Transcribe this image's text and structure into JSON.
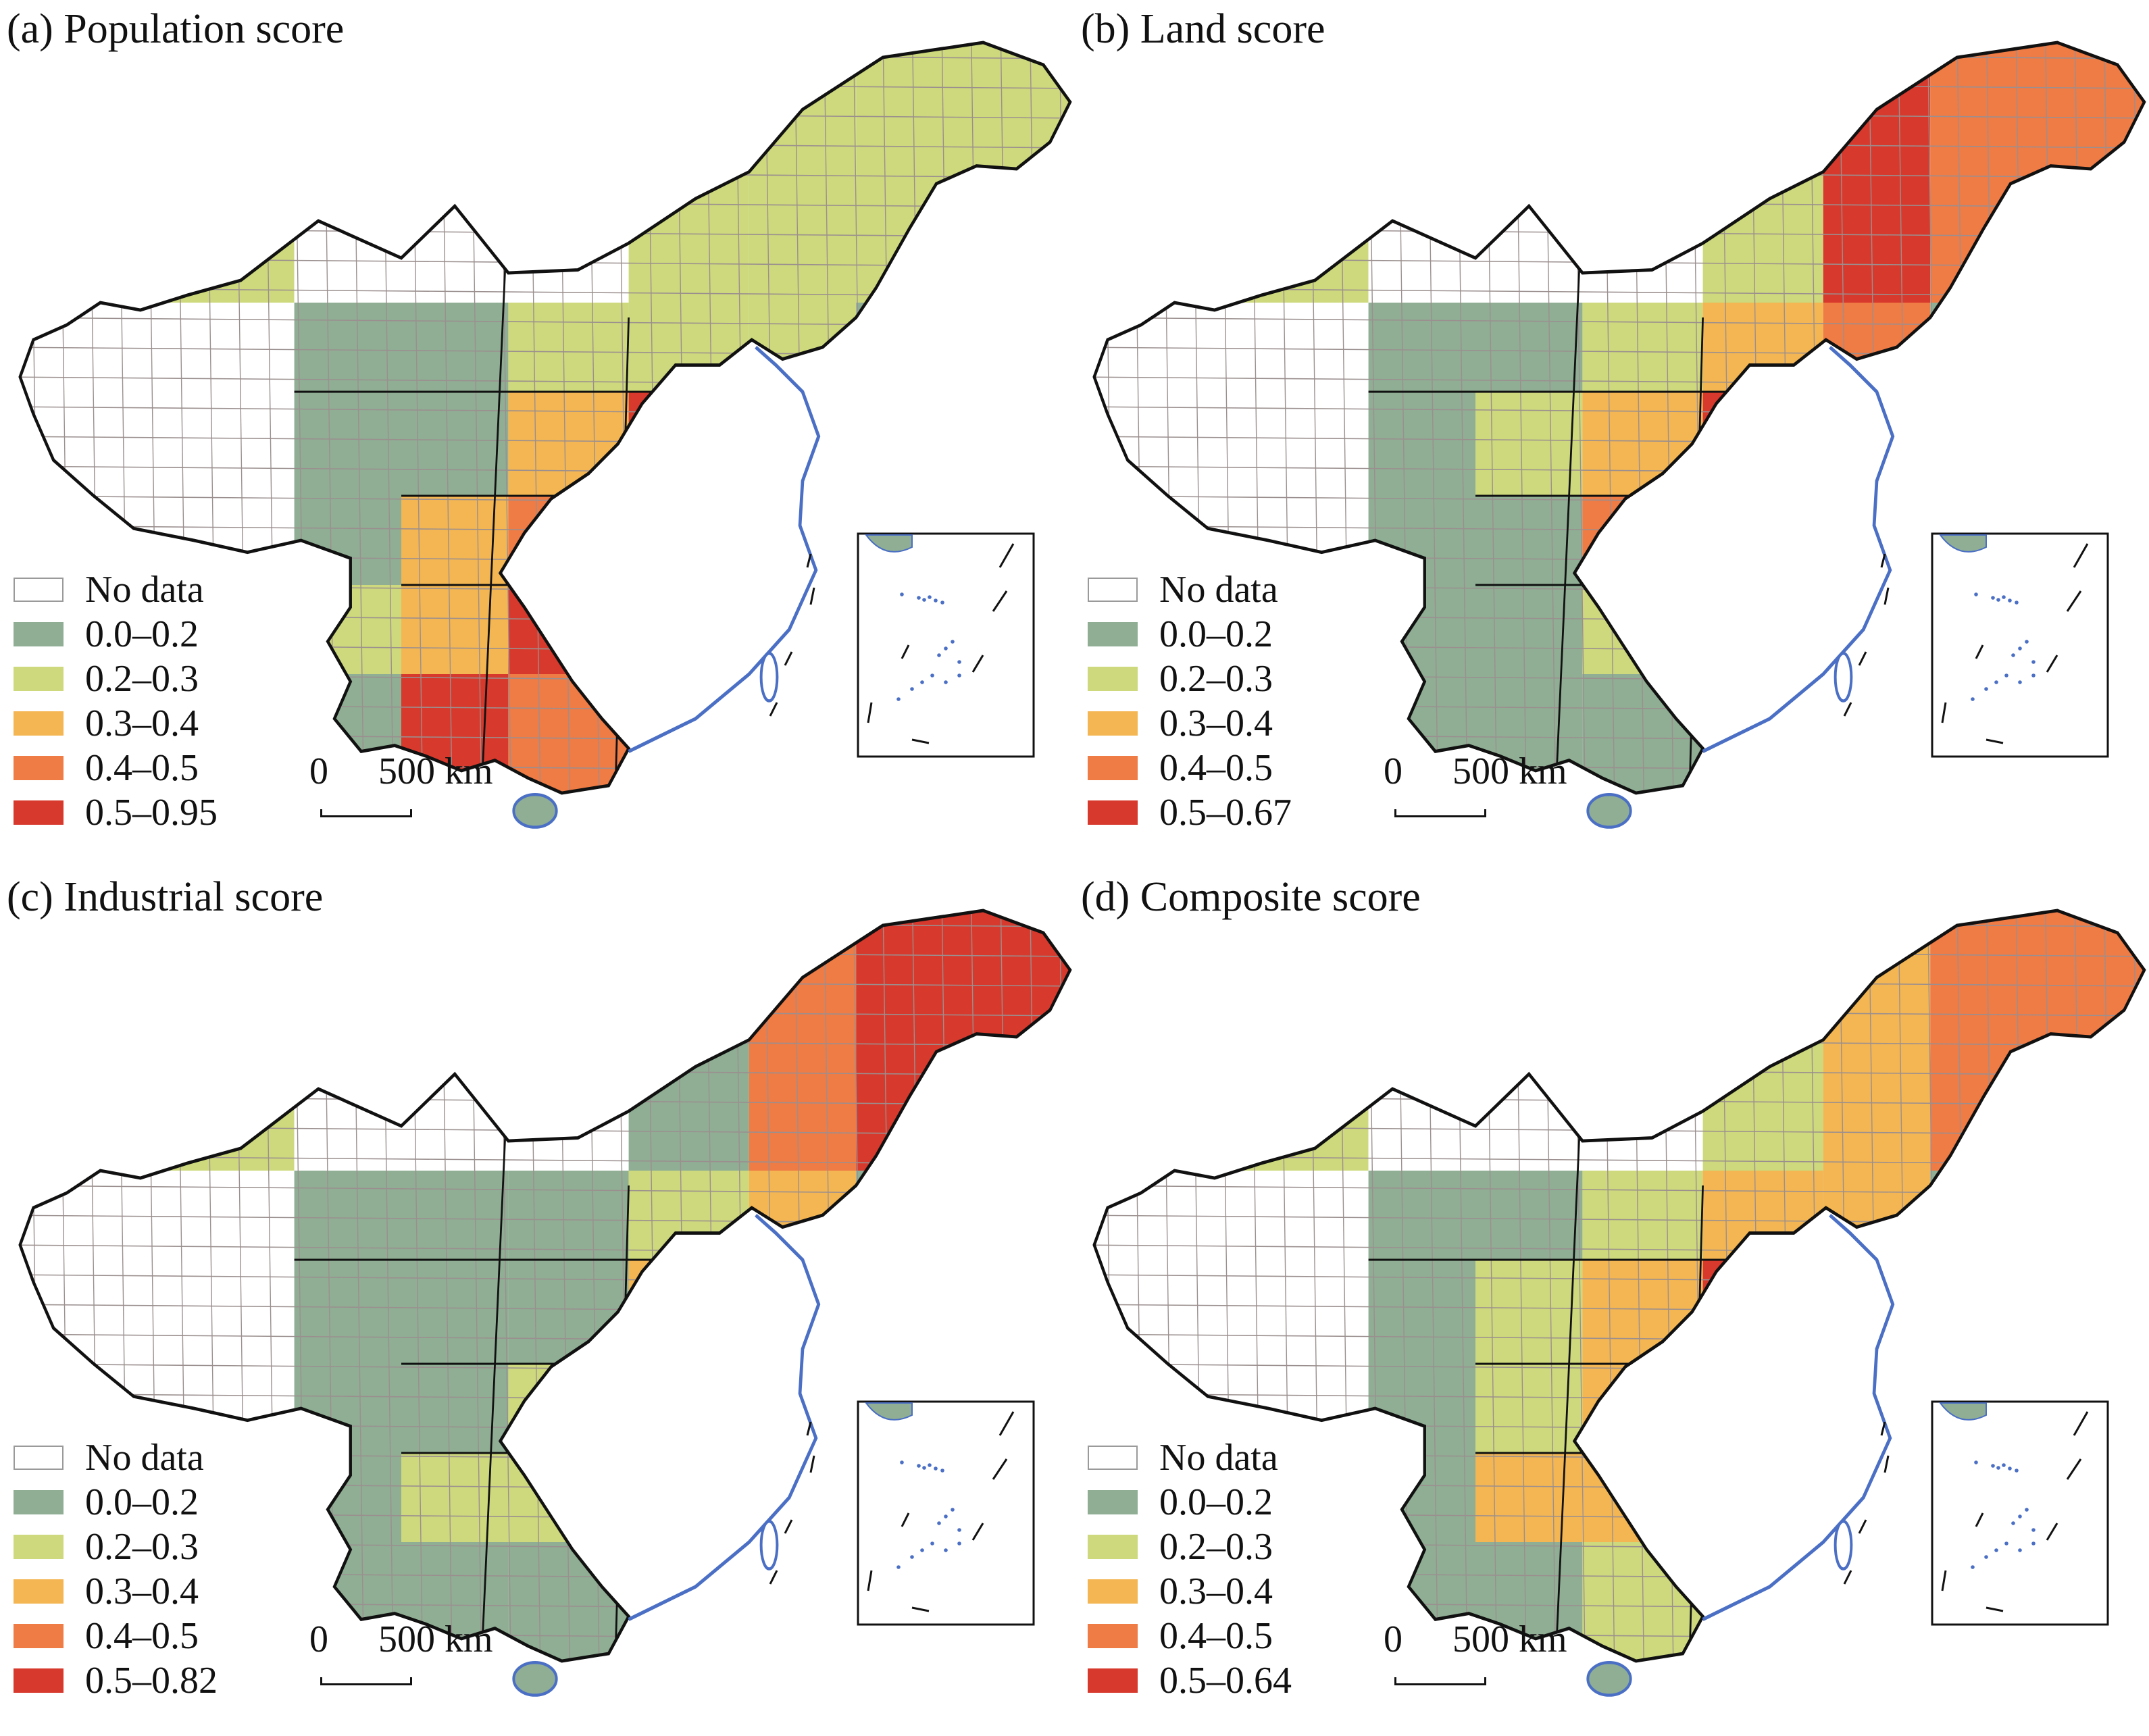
{
  "panels": [
    {
      "id": "a",
      "title": "(a) Population score",
      "legend": [
        "No data",
        "0.0–0.2",
        "0.2–0.3",
        "0.3–0.4",
        "0.4–0.5",
        "0.5–0.95"
      ]
    },
    {
      "id": "b",
      "title": "(b) Land score",
      "legend": [
        "No data",
        "0.0–0.2",
        "0.2–0.3",
        "0.3–0.4",
        "0.4–0.5",
        "0.5–0.67"
      ]
    },
    {
      "id": "c",
      "title": "(c) Industrial score",
      "legend": [
        "No data",
        "0.0–0.2",
        "0.2–0.3",
        "0.3–0.4",
        "0.4–0.5",
        "0.5–0.82"
      ]
    },
    {
      "id": "d",
      "title": "(d) Composite score",
      "legend": [
        "No data",
        "0.0–0.2",
        "0.2–0.3",
        "0.3–0.4",
        "0.4–0.5",
        "0.5–0.64"
      ]
    }
  ],
  "scale_bar": {
    "zero": "0",
    "length": "500 km"
  },
  "legend_colors": [
    "#ffffff",
    "#8fae94",
    "#cdd97c",
    "#f3b652",
    "#ef7b45",
    "#d7392c"
  ],
  "outline_colors": {
    "border": "#111111",
    "county": "#9b8f8f",
    "coast": "#4a6fc4"
  }
}
